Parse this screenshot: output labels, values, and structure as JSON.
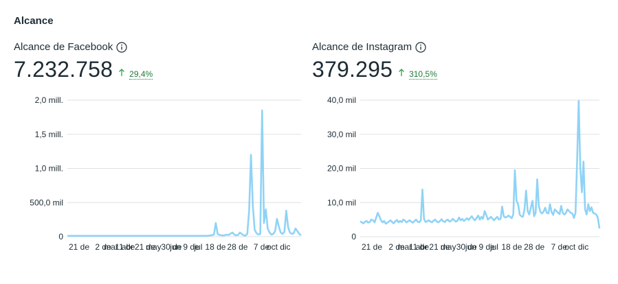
{
  "section": {
    "title": "Alcance"
  },
  "panels": [
    {
      "id": "facebook",
      "title": "Alcance de Facebook",
      "value": "7.232.758",
      "trend": "29,4%",
      "chart_data": {
        "type": "line",
        "y_ticks": [
          "2,0 mill.",
          "1,5 mill.",
          "1,0 mill.",
          "500,0 mil",
          "0"
        ],
        "ylim": [
          0,
          2000000
        ],
        "x_tick_labels": [
          "21 de",
          "2 de",
          "11 de",
          "21 de",
          "30 de",
          "9 de",
          "18 de",
          "28 de",
          "7 de",
          "dic",
          "mar",
          "abr",
          "may",
          "jun",
          "jul",
          "oct"
        ],
        "series": [
          {
            "values": [
              12000,
              11000,
              13000,
              12000,
              11500,
              12500,
              12000,
              11800,
              12200,
              12000,
              11900,
              12100,
              12000,
              12300,
              11800,
              12000,
              12200,
              12100,
              11900,
              12000,
              12000,
              12100,
              11800,
              12000,
              12200,
              12100,
              11900,
              12000,
              12000,
              12100,
              11800,
              12000,
              12200,
              12100,
              11900,
              12000,
              12000,
              12100,
              11800,
              12000,
              12200,
              12100,
              11900,
              12000,
              12000,
              12100,
              11800,
              12000,
              12200,
              12100,
              11900,
              12000,
              12000,
              12100,
              11800,
              12000,
              12200,
              12100,
              11900,
              12000,
              12000,
              12100,
              11800,
              12000,
              12200,
              12100,
              11900,
              12000,
              12000,
              12100,
              11800,
              12000,
              12200,
              12100,
              11900,
              12000,
              15000,
              18000,
              22000,
              30000,
              200000,
              40000,
              25000,
              20000,
              18000,
              22000,
              30000,
              25000,
              45000,
              60000,
              30000,
              20000,
              25000,
              60000,
              40000,
              20000,
              15000,
              40000,
              380000,
              1200000,
              450000,
              100000,
              50000,
              30000,
              40000,
              1850000,
              200000,
              400000,
              120000,
              60000,
              30000,
              40000,
              80000,
              260000,
              150000,
              60000,
              40000,
              70000,
              380000,
              140000,
              60000,
              40000,
              50000,
              120000,
              80000,
              40000,
              20000
            ]
          }
        ]
      }
    },
    {
      "id": "instagram",
      "title": "Alcance de Instagram",
      "value": "379.295",
      "trend": "310,5%",
      "chart_data": {
        "type": "line",
        "y_ticks": [
          "40,0 mil",
          "30,0 mil",
          "20,0 mil",
          "10,0 mil",
          "0"
        ],
        "ylim": [
          0,
          40000
        ],
        "x_tick_labels": [
          "21 de",
          "2 de",
          "11 de",
          "21 de",
          "30 de",
          "9 de",
          "18 de",
          "28 de",
          "7 de",
          "dic",
          "mar",
          "abr",
          "may",
          "jun",
          "jul",
          "oct"
        ],
        "series": [
          {
            "values": [
              4500,
              4200,
              3900,
              4400,
              4600,
              4100,
              4300,
              5000,
              4800,
              4200,
              5500,
              7000,
              6000,
              4800,
              4200,
              4600,
              3800,
              4100,
              4400,
              4800,
              4300,
              3900,
              4500,
              4900,
              4200,
              4600,
              4300,
              5000,
              4700,
              4200,
              4500,
              4800,
              4400,
              4100,
              4600,
              5000,
              4400,
              4200,
              4800,
              13800,
              5200,
              4300,
              4500,
              4800,
              4400,
              4200,
              4700,
              5000,
              4400,
              4200,
              4600,
              5100,
              4500,
              4300,
              4800,
              5000,
              4400,
              4600,
              5200,
              4800,
              4400,
              4700,
              5600,
              4800,
              5200,
              4600,
              5000,
              5400,
              4900,
              5500,
              6000,
              5200,
              4800,
              5500,
              6200,
              5000,
              5800,
              5200,
              7500,
              6400,
              5000,
              5400,
              5800,
              5200,
              4800,
              5400,
              5800,
              5000,
              5200,
              8800,
              6000,
              5600,
              5800,
              6200,
              5800,
              5400,
              6600,
              19500,
              10500,
              9500,
              6500,
              6000,
              5800,
              8000,
              13500,
              7500,
              6500,
              8500,
              10500,
              6000,
              7000,
              16800,
              9000,
              7200,
              6800,
              7400,
              8500,
              7000,
              6800,
              9500,
              7200,
              6400,
              8000,
              7500,
              7000,
              6600,
              9000,
              7000,
              6500,
              7000,
              8000,
              7500,
              7000,
              6800,
              5500,
              7000,
              22000,
              39800,
              20000,
              13000,
              22000,
              8000,
              6500,
              9500,
              7500,
              8600,
              7000,
              6800,
              6500,
              5500,
              2400
            ]
          }
        ]
      }
    }
  ]
}
